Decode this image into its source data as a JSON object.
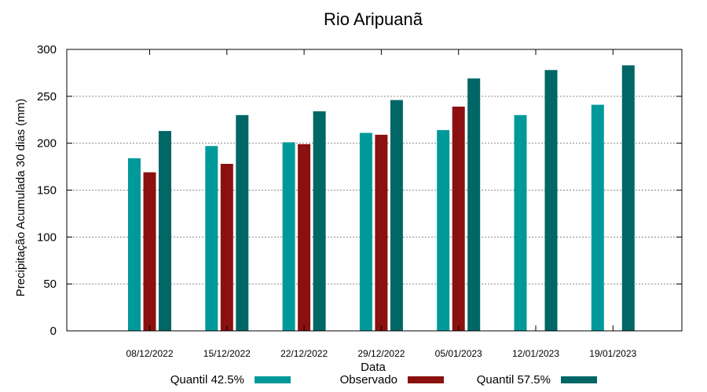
{
  "chart_data": {
    "type": "bar",
    "title": "Rio Aripuanã",
    "xlabel": "Data",
    "ylabel": "Precipitação Acumulada 30 dias (mm)",
    "ylim": [
      0,
      300
    ],
    "yticks": [
      0,
      50,
      100,
      150,
      200,
      250,
      300
    ],
    "grid": true,
    "legend_position": "bottom",
    "categories": [
      "08/12/2022",
      "15/12/2022",
      "22/12/2022",
      "29/12/2022",
      "05/01/2023",
      "12/01/2023",
      "19/01/2023"
    ],
    "series": [
      {
        "name": "Quantil 42.5%",
        "color": "#009999",
        "values": [
          184,
          197,
          201,
          211,
          214,
          230,
          241
        ]
      },
      {
        "name": "Observado",
        "color": "#8b1010",
        "values": [
          169,
          178,
          199,
          209,
          239,
          null,
          null
        ]
      },
      {
        "name": "Quantil 57.5%",
        "color": "#006666",
        "values": [
          213,
          230,
          234,
          246,
          269,
          278,
          283
        ]
      }
    ]
  }
}
